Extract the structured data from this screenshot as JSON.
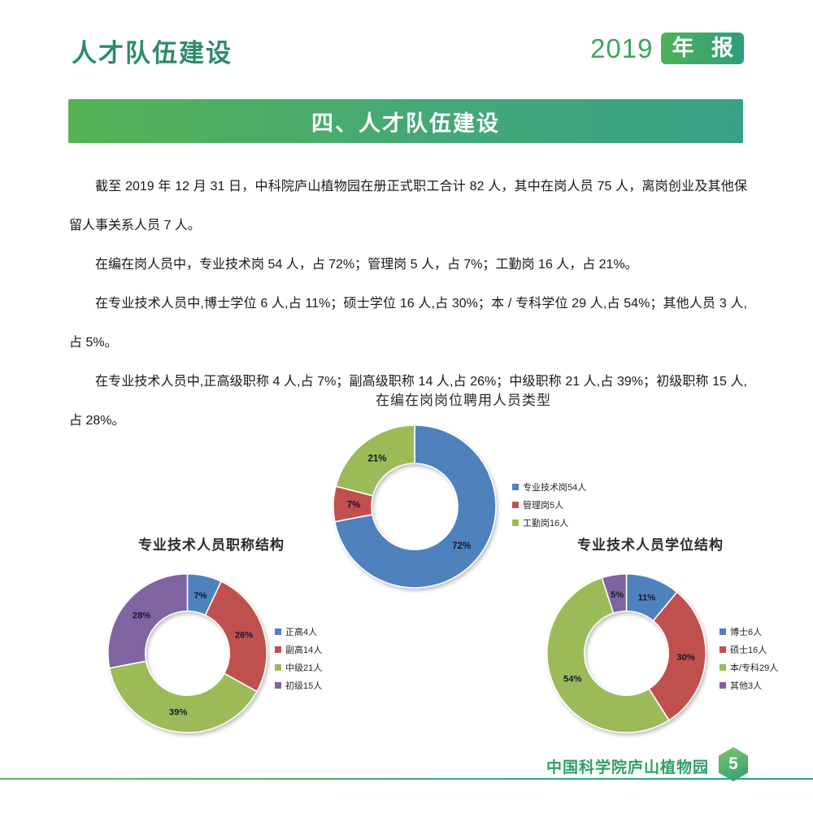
{
  "page": {
    "header": {
      "title": "人才队伍建设",
      "year": "2019",
      "year_badge": "年 报"
    },
    "banner": {
      "title": "四、人才队伍建设"
    },
    "paragraphs": [
      "截至 2019 年 12 月 31 日，中科院庐山植物园在册正式职工合计 82 人，其中在岗人员 75 人，离岗创业及其他保留人事关系人员 7 人。",
      "在编在岗人员中，专业技术岗 54 人，占 72%；管理岗 5 人，占 7%；工勤岗 16 人，占 21%。",
      "在专业技术人员中,博士学位 6 人,占 11%；硕士学位 16 人,占 30%；本 / 专科学位 29 人,占 54%；其他人员 3 人,占 5%。",
      "在专业技术人员中,正高级职称 4 人,占 7%；副高级职称 14 人,占 26%；中级职称 21 人,占 39%；初级职称 15 人,占 28%。"
    ],
    "footer": {
      "org": "中国科学院庐山植物园",
      "page_number": "5"
    }
  },
  "colors": {
    "heading_green": "#2e8b68",
    "accent_green": "#3fa45c",
    "banner_gradient_start": "#55b355",
    "banner_gradient_end": "#38a186",
    "footer_green": "#2f9f63",
    "series_blue": "#4F81BD",
    "series_red": "#C0504D",
    "series_green": "#9BBB59",
    "series_purple": "#8064A2"
  },
  "chart_data": [
    {
      "type": "pie",
      "subtype": "donut",
      "title": "在编在岗岗位聘用人员类型",
      "labels": [
        "专业技术岗54人",
        "管理岗5人",
        "工勤岗16人"
      ],
      "values": [
        72,
        7,
        21
      ],
      "value_labels": [
        "72%",
        "7%",
        "21%"
      ],
      "colors": [
        "#4F81BD",
        "#C0504D",
        "#9BBB59"
      ],
      "legend_position": "right",
      "start_angle_deg": 0,
      "direction": "clockwise"
    },
    {
      "type": "pie",
      "subtype": "donut",
      "title": "专业技术人员职称结构",
      "labels": [
        "正高4人",
        "副高14人",
        "中级21人",
        "初级15人"
      ],
      "values": [
        7,
        26,
        39,
        28
      ],
      "value_labels": [
        "7%",
        "26%",
        "39%",
        "28%"
      ],
      "colors": [
        "#4F81BD",
        "#C0504D",
        "#9BBB59",
        "#8064A2"
      ],
      "legend_position": "right",
      "start_angle_deg": 0,
      "direction": "clockwise"
    },
    {
      "type": "pie",
      "subtype": "donut",
      "title": "专业技术人员学位结构",
      "labels": [
        "博士6人",
        "硕士16人",
        "本/专科29人",
        "其他3人"
      ],
      "values": [
        11,
        30,
        54,
        5
      ],
      "value_labels": [
        "11%",
        "30%",
        "54%",
        "5%"
      ],
      "colors": [
        "#4F81BD",
        "#C0504D",
        "#9BBB59",
        "#8064A2"
      ],
      "legend_position": "right",
      "start_angle_deg": 0,
      "direction": "clockwise"
    }
  ]
}
